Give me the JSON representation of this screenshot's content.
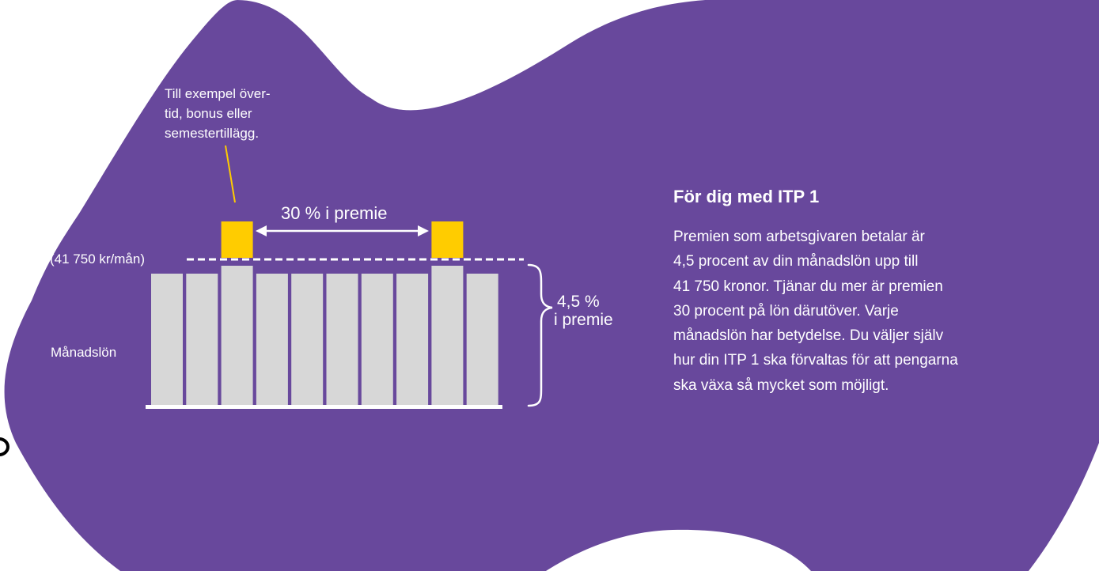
{
  "colors": {
    "background": "#ffffff",
    "blob": "#68489c",
    "bar": "#d7d7d7",
    "highlight": "#ffcc00",
    "text": "#ffffff",
    "dashed_line": "#ffffff",
    "baseline": "#ffffff"
  },
  "icons": {
    "arrow": "double-headed-arrow",
    "brace": "right-curly-brace",
    "edge_glyph": "partial-ring"
  },
  "diagram": {
    "callout_lines": [
      "Till exempel över-",
      "tid, bonus eller",
      "semestertillägg."
    ],
    "premium_30_label": "30 % i premie",
    "threshold_label": "(41 750 kr/mån)",
    "monthly_salary_label": "Månadslön",
    "premium_45_line1": "4,5 %",
    "premium_45_line2": "i premie",
    "bar_count": 10,
    "highlighted_months": [
      3,
      9
    ]
  },
  "info": {
    "heading": "För dig med ITP 1",
    "body_lines": [
      "Premien som arbetsgivaren betalar är",
      "4,5 procent av din månadslön upp till",
      "41 750 kronor. Tjänar du mer är premien",
      "30 procent på lön därutöver. Varje",
      "månadslön har betydelse. Du väljer själv",
      "hur din ITP 1 ska förvaltas för att pengarna",
      "ska växa så mycket som möjligt."
    ]
  }
}
